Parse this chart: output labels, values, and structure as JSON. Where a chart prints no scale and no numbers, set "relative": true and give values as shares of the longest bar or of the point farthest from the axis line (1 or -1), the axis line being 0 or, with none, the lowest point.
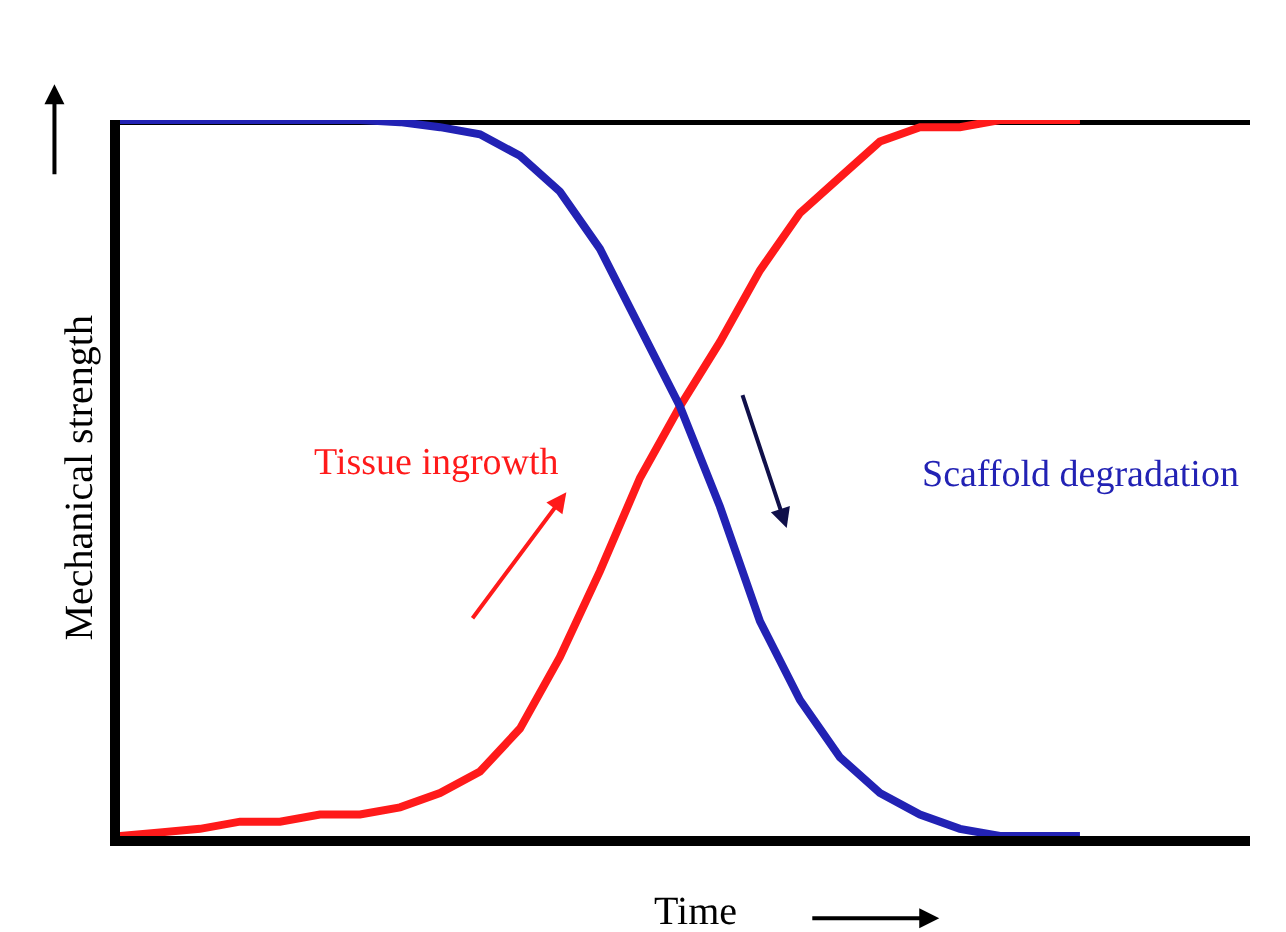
{
  "chart_data": {
    "type": "line",
    "relative": true,
    "xlabel": "Time",
    "ylabel": "Mechanical strength",
    "categories": [
      null,
      null,
      null,
      null,
      null,
      null,
      null,
      null,
      null,
      null,
      null,
      null,
      null,
      null,
      null,
      null,
      null,
      null,
      null,
      null,
      null,
      null,
      null,
      null,
      null,
      null,
      null,
      null,
      null
    ],
    "series": [
      {
        "name": "Tissue ingrowth",
        "color": "#ff1a1a",
        "values": [
          0,
          0.005,
          0.01,
          0.02,
          0.02,
          0.03,
          0.03,
          0.04,
          0.06,
          0.09,
          0.15,
          0.25,
          0.37,
          0.5,
          0.6,
          0.69,
          0.79,
          0.87,
          0.92,
          0.97,
          0.99,
          0.99,
          1,
          1,
          1,
          null,
          null,
          null,
          null
        ]
      },
      {
        "name": "Scaffold degradation",
        "color": "#2222b4",
        "values": [
          1,
          1,
          1,
          1,
          1,
          1,
          1,
          0.997,
          0.99,
          0.98,
          0.95,
          0.9,
          0.82,
          0.71,
          0.6,
          0.46,
          0.3,
          0.19,
          0.11,
          0.06,
          0.03,
          0.01,
          0,
          0,
          0,
          null,
          null,
          null,
          null
        ]
      }
    ],
    "ref_lines": [
      {
        "axis": "y",
        "value": 1,
        "color": "#000000"
      }
    ],
    "legend": false,
    "marker": "none",
    "line_style": "solid"
  }
}
